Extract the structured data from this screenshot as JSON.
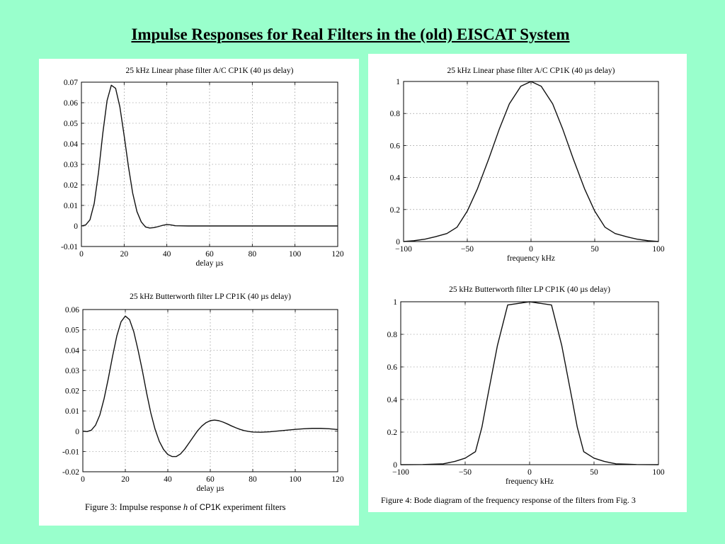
{
  "slide": {
    "title": "Impulse Responses for Real Filters in the (old) EISCAT System"
  },
  "captions": {
    "figure3_prefix": "Figure 3: Impulse response",
    "figure3_symbol": "h",
    "figure3_of": "of",
    "figure3_code": "CP1K",
    "figure3_suffix": "experiment filters",
    "figure4": "Figure 4: Bode diagram of the frequency response of the filters from Fig. 3"
  },
  "chart_data": [
    {
      "id": "impulse-linear",
      "type": "line",
      "title": "25 kHz Linear phase filter A/C CP1K (40 µs delay)",
      "xlabel": "delay µs",
      "ylabel": "",
      "xlim": [
        0,
        120
      ],
      "ylim": [
        -0.01,
        0.07
      ],
      "xticks": [
        0,
        20,
        40,
        60,
        80,
        100,
        120
      ],
      "yticks": [
        -0.01,
        0,
        0.01,
        0.02,
        0.03,
        0.04,
        0.05,
        0.06,
        0.07
      ],
      "yticklabels": [
        "-0.01",
        "0",
        "0.01",
        "0.02",
        "0.03",
        "0.04",
        "0.05",
        "0.06",
        "0.07"
      ],
      "grid": true,
      "series": [
        {
          "x": [
            0,
            2,
            4,
            6,
            8,
            10,
            12,
            14,
            16,
            18,
            20,
            22,
            24,
            26,
            28,
            30,
            32,
            34,
            36,
            38,
            40,
            42,
            44,
            50,
            60,
            80,
            100,
            120
          ],
          "y": [
            0,
            0.0005,
            0.003,
            0.011,
            0.026,
            0.045,
            0.061,
            0.0685,
            0.067,
            0.058,
            0.044,
            0.029,
            0.016,
            0.007,
            0.002,
            -0.0005,
            -0.001,
            -0.0008,
            -0.0003,
            0.0003,
            0.0007,
            0.0005,
            0.0001,
            0,
            0,
            0,
            0,
            0
          ]
        }
      ]
    },
    {
      "id": "impulse-butterworth",
      "type": "line",
      "title": "25 kHz Butterworth filter LP CP1K (40 µs delay)",
      "xlabel": "delay µs",
      "ylabel": "",
      "xlim": [
        0,
        120
      ],
      "ylim": [
        -0.02,
        0.06
      ],
      "xticks": [
        0,
        20,
        40,
        60,
        80,
        100,
        120
      ],
      "yticks": [
        -0.02,
        -0.01,
        0,
        0.01,
        0.02,
        0.03,
        0.04,
        0.05,
        0.06
      ],
      "yticklabels": [
        "-0.02",
        "-0.01",
        "0",
        "0.01",
        "0.02",
        "0.03",
        "0.04",
        "0.05",
        "0.06"
      ],
      "grid": true,
      "series": [
        {
          "x": [
            0,
            2,
            4,
            6,
            8,
            10,
            12,
            14,
            16,
            18,
            20,
            22,
            24,
            26,
            28,
            30,
            32,
            34,
            36,
            38,
            40,
            42,
            44,
            46,
            48,
            50,
            52,
            54,
            56,
            58,
            60,
            62,
            64,
            66,
            68,
            70,
            72,
            74,
            76,
            78,
            80,
            84,
            88,
            92,
            96,
            100,
            104,
            108,
            112,
            116,
            120
          ],
          "y": [
            0,
            -0.0002,
            0.0005,
            0.003,
            0.008,
            0.016,
            0.026,
            0.037,
            0.047,
            0.054,
            0.0568,
            0.055,
            0.049,
            0.04,
            0.03,
            0.019,
            0.009,
            0.001,
            -0.005,
            -0.009,
            -0.0115,
            -0.0125,
            -0.0125,
            -0.0112,
            -0.0088,
            -0.0058,
            -0.0028,
            0.0002,
            0.0025,
            0.0042,
            0.0052,
            0.0055,
            0.0052,
            0.0045,
            0.0036,
            0.0026,
            0.0017,
            0.0009,
            0.0003,
            -0.0001,
            -0.0004,
            -0.0005,
            -0.0003,
            0.0001,
            0.0005,
            0.0009,
            0.0012,
            0.0014,
            0.0014,
            0.0012,
            0.0008
          ]
        }
      ]
    },
    {
      "id": "bode-linear",
      "type": "line",
      "title": "25 kHz Linear phase filter A/C CP1K (40 µs delay)",
      "xlabel": "frequency kHz",
      "ylabel": "",
      "xlim": [
        -100,
        100
      ],
      "ylim": [
        0,
        1
      ],
      "xticks": [
        -100,
        -50,
        0,
        50,
        100
      ],
      "yticks": [
        0,
        0.2,
        0.4,
        0.6,
        0.8,
        1
      ],
      "yticklabels": [
        "0",
        "0.2",
        "0.4",
        "0.6",
        "0.8",
        "1"
      ],
      "grid": true,
      "series": [
        {
          "x": [
            -100,
            -92,
            -83,
            -75,
            -66,
            -58,
            -50,
            -42,
            -33,
            -25,
            -17,
            -8,
            0,
            8,
            17,
            25,
            33,
            42,
            50,
            58,
            66,
            75,
            83,
            92,
            100
          ],
          "y": [
            0,
            0.005,
            0.015,
            0.03,
            0.05,
            0.09,
            0.19,
            0.33,
            0.52,
            0.7,
            0.86,
            0.97,
            1,
            0.97,
            0.86,
            0.7,
            0.52,
            0.33,
            0.19,
            0.09,
            0.05,
            0.03,
            0.015,
            0.005,
            0
          ]
        }
      ]
    },
    {
      "id": "bode-butterworth",
      "type": "line",
      "title": "25 kHz Butterworth filter LP CP1K (40 µs delay)",
      "xlabel": "frequency kHz",
      "ylabel": "",
      "xlim": [
        -100,
        100
      ],
      "ylim": [
        0,
        1
      ],
      "xticks": [
        -100,
        -50,
        0,
        50,
        100
      ],
      "yticks": [
        0,
        0.2,
        0.4,
        0.6,
        0.8,
        1
      ],
      "yticklabels": [
        "0",
        "0.2",
        "0.4",
        "0.6",
        "0.8",
        "1"
      ],
      "grid": true,
      "series": [
        {
          "x": [
            -100,
            -83,
            -67,
            -58,
            -50,
            -42,
            -37,
            -33,
            -25,
            -17,
            0,
            17,
            25,
            33,
            37,
            42,
            50,
            58,
            67,
            83,
            100
          ],
          "y": [
            0,
            0.001,
            0.005,
            0.02,
            0.04,
            0.08,
            0.23,
            0.4,
            0.73,
            0.98,
            1,
            0.98,
            0.73,
            0.4,
            0.23,
            0.08,
            0.04,
            0.02,
            0.005,
            0.001,
            0
          ]
        }
      ]
    }
  ]
}
